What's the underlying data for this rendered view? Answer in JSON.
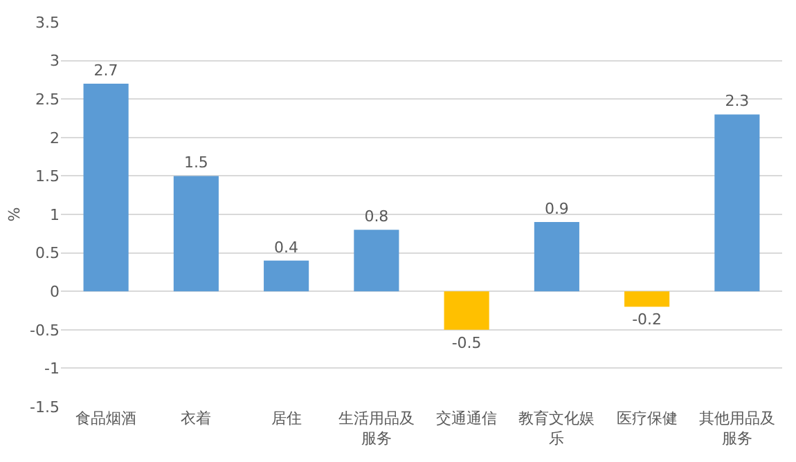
{
  "chart_data": {
    "type": "bar",
    "ylabel": "%",
    "categories": [
      "食品烟酒",
      "衣着",
      "居住",
      "生活用品及服务",
      "交通通信",
      "教育文化娱乐",
      "医疗保健",
      "其他用品及服务"
    ],
    "values": [
      2.7,
      1.5,
      0.4,
      0.8,
      -0.5,
      0.9,
      -0.2,
      2.3
    ],
    "colors": [
      "#5b9bd5",
      "#5b9bd5",
      "#5b9bd5",
      "#5b9bd5",
      "#ffc000",
      "#5b9bd5",
      "#ffc000",
      "#5b9bd5"
    ],
    "ylim": [
      -1.5,
      3.5
    ],
    "yticks": [
      -1.5,
      -1,
      -0.5,
      0,
      0.5,
      1,
      1.5,
      2,
      2.5,
      3,
      3.5
    ],
    "grid": "y",
    "data_labels": true
  }
}
